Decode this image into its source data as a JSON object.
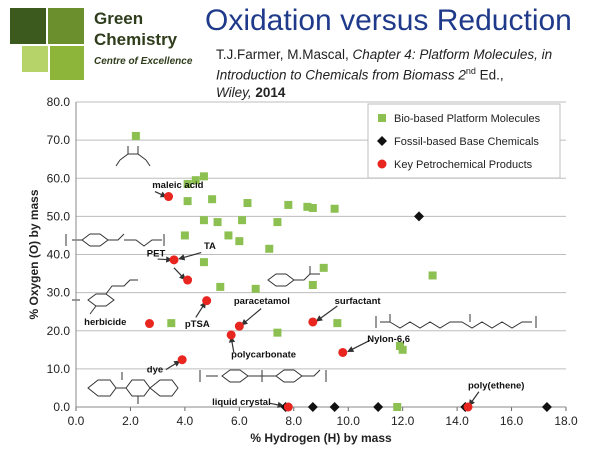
{
  "logo": {
    "line1": "Green",
    "line2": "Chemistry",
    "line3": "Centre of Excellence",
    "colors": [
      "#3d5a1e",
      "#6a8f2c",
      "#8db53a",
      "#b6d36a"
    ]
  },
  "title": "Oxidation versus Reduction",
  "citation": {
    "authors": "T.J.Farmer, M.Mascal, ",
    "chapter": "Chapter 4: Platform Molecules, in Introduction to Chemicals from Biomass 2",
    "sup": "nd",
    "edition": " Ed.,",
    "publisher": "Wiley, ",
    "year": "2014"
  },
  "chart_data": {
    "type": "scatter",
    "xlabel": "% Hydrogen (H) by mass",
    "ylabel": "% Oxygen (O) by mass",
    "xlim": [
      0,
      18
    ],
    "ylim": [
      0,
      80
    ],
    "xticks": [
      "0.0",
      "2.0",
      "4.0",
      "6.0",
      "8.0",
      "10.0",
      "12.0",
      "14.0",
      "16.0",
      "18.0"
    ],
    "yticks": [
      "0.0",
      "10.0",
      "20.0",
      "30.0",
      "40.0",
      "50.0",
      "60.0",
      "70.0",
      "80.0"
    ],
    "grid": "horizontal",
    "legend_position": "top-right",
    "series": [
      {
        "name": "Bio-based Platform Molecules",
        "marker": "square",
        "color": "#8cc152",
        "points": [
          [
            2.2,
            71.1
          ],
          [
            4.1,
            58.5
          ],
          [
            4.4,
            59.5
          ],
          [
            4.7,
            60.5
          ],
          [
            4.1,
            54.0
          ],
          [
            5.0,
            54.5
          ],
          [
            4.7,
            49.0
          ],
          [
            6.3,
            53.5
          ],
          [
            7.8,
            53.0
          ],
          [
            8.5,
            52.5
          ],
          [
            8.7,
            52.2
          ],
          [
            9.5,
            52.0
          ],
          [
            5.2,
            48.5
          ],
          [
            6.1,
            49.0
          ],
          [
            7.4,
            48.5
          ],
          [
            4.0,
            45.0
          ],
          [
            5.6,
            45.0
          ],
          [
            6.0,
            43.5
          ],
          [
            7.1,
            41.5
          ],
          [
            4.7,
            38.0
          ],
          [
            9.1,
            36.5
          ],
          [
            13.1,
            34.5
          ],
          [
            5.3,
            31.5
          ],
          [
            6.6,
            31.0
          ],
          [
            8.7,
            32.0
          ],
          [
            3.5,
            22.0
          ],
          [
            9.6,
            22.0
          ],
          [
            7.4,
            19.5
          ],
          [
            11.9,
            16.0
          ],
          [
            12.0,
            15.0
          ],
          [
            11.8,
            0.0
          ]
        ]
      },
      {
        "name": "Fossil-based Base Chemicals",
        "marker": "diamond",
        "color": "#111111",
        "points": [
          [
            12.6,
            50.0
          ],
          [
            7.7,
            0.0
          ],
          [
            8.7,
            0.0
          ],
          [
            9.5,
            0.0
          ],
          [
            11.1,
            0.0
          ],
          [
            14.3,
            0.0
          ],
          [
            17.3,
            0.0
          ]
        ]
      },
      {
        "name": "Key Petrochemical Products",
        "marker": "circle",
        "color": "#e8251f",
        "points": [
          [
            3.4,
            55.2
          ],
          [
            3.6,
            38.6
          ],
          [
            4.1,
            33.3
          ],
          [
            4.8,
            27.9
          ],
          [
            2.7,
            21.9
          ],
          [
            5.7,
            18.9
          ],
          [
            6.0,
            21.2
          ],
          [
            8.7,
            22.3
          ],
          [
            9.8,
            14.3
          ],
          [
            3.9,
            12.4
          ],
          [
            7.8,
            0.0
          ],
          [
            14.4,
            0.0
          ]
        ]
      }
    ],
    "annotations": [
      {
        "text": "maleic acid",
        "x": 2.8,
        "y": 57.5
      },
      {
        "text": "PET",
        "x": 2.6,
        "y": 39.5
      },
      {
        "text": "TA",
        "x": 4.7,
        "y": 41.5
      },
      {
        "text": "herbicide",
        "x": 0.3,
        "y": 21.5
      },
      {
        "text": "pTSA",
        "x": 4.0,
        "y": 21.0
      },
      {
        "text": "paracetamol",
        "x": 5.8,
        "y": 27.0
      },
      {
        "text": "surfactant",
        "x": 9.5,
        "y": 27.0
      },
      {
        "text": "polycarbonate",
        "x": 5.7,
        "y": 13.0
      },
      {
        "text": "Nylon-6,6",
        "x": 10.7,
        "y": 17.0
      },
      {
        "text": "dye",
        "x": 2.6,
        "y": 9.0
      },
      {
        "text": "liquid crystal",
        "x": 5.0,
        "y": 0.5
      },
      {
        "text": "poly(ethene)",
        "x": 14.4,
        "y": 4.8
      }
    ]
  }
}
